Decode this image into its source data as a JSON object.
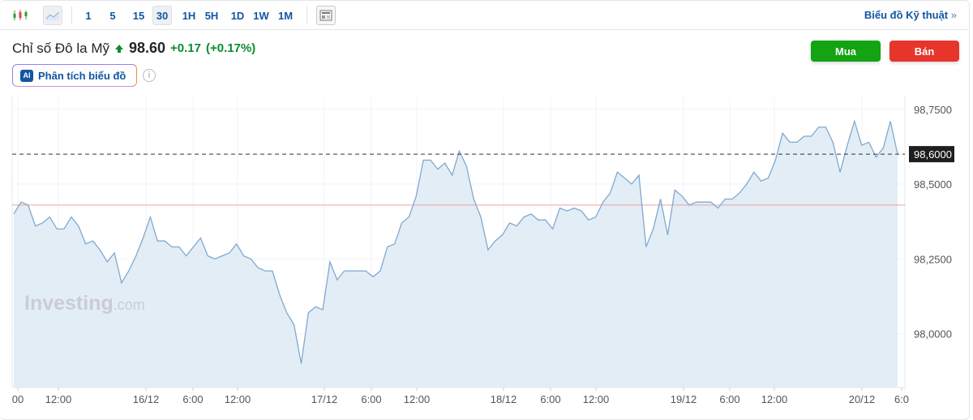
{
  "toolbar": {
    "icons": [
      "candlestick-icon",
      "area-chart-icon",
      "news-layout-icon"
    ],
    "intervals": [
      "1",
      "5",
      "15",
      "30",
      "1H",
      "5H",
      "1D",
      "1W",
      "1M"
    ],
    "active_interval": "30",
    "technical_link": "Biểu đồ Kỹ thuật",
    "technical_arrow": "»"
  },
  "instrument": {
    "name": "Chỉ số Đô la Mỹ",
    "price": "98.60",
    "change": "+0.17",
    "change_pct": "(+0.17%)",
    "direction": "up"
  },
  "ai_button": {
    "badge": "AI",
    "label": "Phân tích biểu đồ",
    "info": "i"
  },
  "buy_label": "Mua",
  "sell_label": "Bán",
  "colors": {
    "buy": "#13a313",
    "sell": "#e8352b",
    "line": "#7fa9d0",
    "fill": "#e3edf6",
    "up": "#0a8a30",
    "prev_close": "#f0a0a0"
  },
  "watermark": {
    "brand": "Investing",
    "suffix": ".com"
  },
  "chart_data": {
    "type": "area",
    "ylim": [
      97.82,
      98.79
    ],
    "y_ticks": [
      "98,7500",
      "98,5000",
      "98,2500",
      "98,0000"
    ],
    "y_tick_values": [
      98.75,
      98.5,
      98.25,
      98.0
    ],
    "current_label": "98,6000",
    "current_value": 98.6,
    "previous_close": 98.43,
    "x_ticks": [
      "00",
      "12:00",
      "16/12",
      "6:00",
      "12:00",
      "17/12",
      "6:00",
      "12:00",
      "18/12",
      "6:00",
      "12:00",
      "19/12",
      "6:00",
      "12:00",
      "20/12",
      "6:0"
    ],
    "grid": true,
    "values": [
      98.4,
      98.44,
      98.43,
      98.36,
      98.37,
      98.39,
      98.35,
      98.35,
      98.39,
      98.36,
      98.3,
      98.31,
      98.28,
      98.24,
      98.27,
      98.17,
      98.21,
      98.26,
      98.32,
      98.39,
      98.31,
      98.31,
      98.29,
      98.29,
      98.26,
      98.29,
      98.32,
      98.26,
      98.25,
      98.26,
      98.27,
      98.3,
      98.26,
      98.25,
      98.22,
      98.21,
      98.21,
      98.13,
      98.07,
      98.03,
      97.9,
      98.07,
      98.09,
      98.08,
      98.24,
      98.18,
      98.21,
      98.21,
      98.21,
      98.21,
      98.19,
      98.21,
      98.29,
      98.3,
      98.37,
      98.39,
      98.46,
      98.58,
      98.58,
      98.55,
      98.57,
      98.53,
      98.61,
      98.56,
      98.45,
      98.39,
      98.28,
      98.31,
      98.33,
      98.37,
      98.36,
      98.39,
      98.4,
      98.38,
      98.38,
      98.35,
      98.42,
      98.41,
      98.42,
      98.41,
      98.38,
      98.39,
      98.44,
      98.47,
      98.54,
      98.52,
      98.5,
      98.53,
      98.29,
      98.35,
      98.45,
      98.33,
      98.48,
      98.46,
      98.43,
      98.44,
      98.44,
      98.44,
      98.42,
      98.45,
      98.45,
      98.47,
      98.5,
      98.54,
      98.51,
      98.52,
      98.58,
      98.67,
      98.64,
      98.64,
      98.66,
      98.66,
      98.69,
      98.69,
      98.64,
      98.54,
      98.63,
      98.71,
      98.63,
      98.64,
      98.59,
      98.62,
      98.71,
      98.6
    ]
  }
}
